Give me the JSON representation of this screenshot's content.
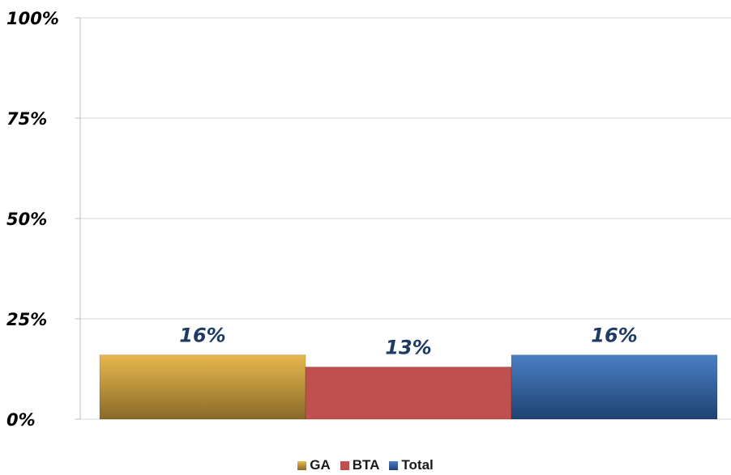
{
  "chart_data": {
    "type": "bar",
    "title": "",
    "xlabel": "",
    "ylabel": "",
    "ylim": [
      0,
      100
    ],
    "yticks": [
      "0%",
      "25%",
      "50%",
      "75%",
      "100%"
    ],
    "ytick_values": [
      0,
      25,
      50,
      75,
      100
    ],
    "grid": true,
    "legend_position": "bottom",
    "series": [
      {
        "name": "GA",
        "value": 16,
        "label": "16%",
        "color_top": "#e8b84e",
        "color_bottom": "#8a6a2a",
        "color": "#c8963a"
      },
      {
        "name": "BTA",
        "value": 13,
        "label": "13%",
        "color_top": "#c0504d",
        "color_bottom": "#c0504d",
        "color": "#c0504d"
      },
      {
        "name": "Total",
        "value": 16,
        "label": "16%",
        "color_top": "#4a7fc4",
        "color_bottom": "#1f4272",
        "color": "#3a6aa8"
      }
    ]
  },
  "colors": {
    "gridline": "#d9d9d9",
    "axis": "#bfbfbf",
    "data_label": "#1f3a63"
  }
}
